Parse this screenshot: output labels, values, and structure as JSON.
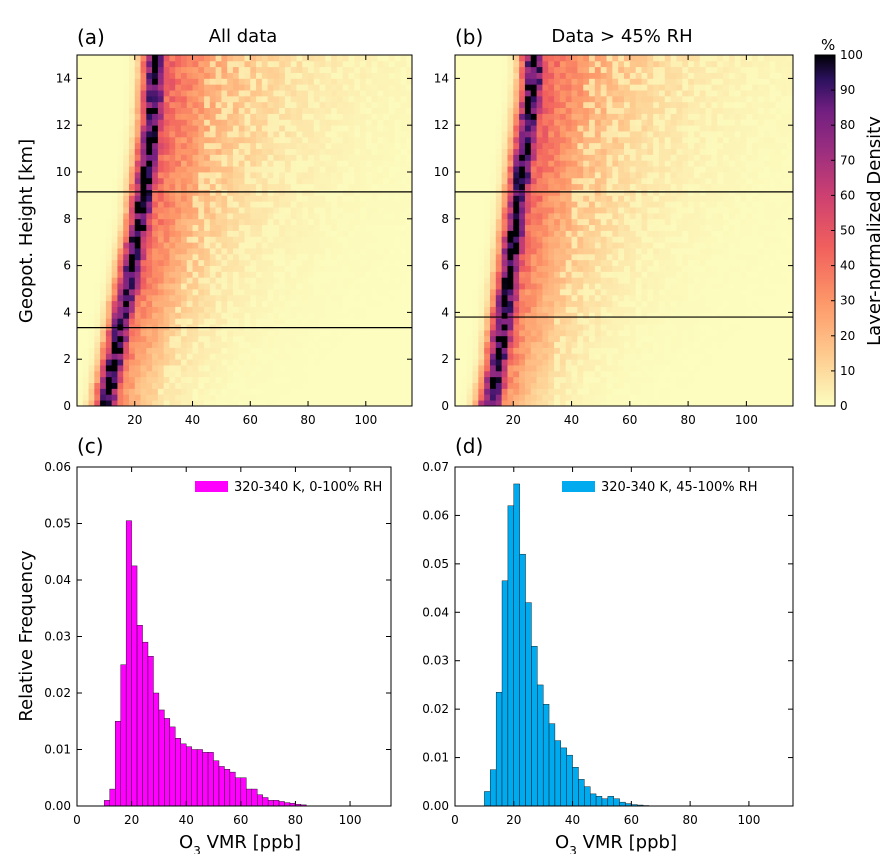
{
  "chart_data": [
    {
      "type": "heatmap",
      "panel": "(a)",
      "title": "All data",
      "xlabel": "",
      "ylabel": "Geopot. Height [km]",
      "xlim": [
        0,
        116
      ],
      "ylim": [
        0,
        15
      ],
      "xticks": [
        20,
        40,
        60,
        80,
        100
      ],
      "yticks": [
        0,
        2,
        4,
        6,
        8,
        10,
        12,
        14
      ],
      "hlines": [
        3.35,
        9.15
      ],
      "ridge": [
        [
          10,
          0
        ],
        [
          13,
          2
        ],
        [
          16,
          4
        ],
        [
          19,
          6
        ],
        [
          22,
          8
        ],
        [
          24,
          10
        ],
        [
          26,
          12
        ],
        [
          27,
          14
        ],
        [
          27,
          15
        ]
      ]
    },
    {
      "type": "heatmap",
      "panel": "(b)",
      "title": "Data > 45% RH",
      "xlabel": "",
      "ylabel": "",
      "xlim": [
        0,
        116
      ],
      "ylim": [
        0,
        15
      ],
      "xticks": [
        20,
        40,
        60,
        80,
        100
      ],
      "yticks": [
        0,
        2,
        4,
        6,
        8,
        10,
        12,
        14
      ],
      "hlines": [
        3.8,
        9.15
      ],
      "ridge": [
        [
          12,
          0
        ],
        [
          15,
          2
        ],
        [
          17,
          4
        ],
        [
          19,
          6
        ],
        [
          21,
          8
        ],
        [
          23,
          10
        ],
        [
          25,
          12
        ],
        [
          27,
          14
        ],
        [
          27,
          15
        ]
      ]
    },
    {
      "type": "bar",
      "panel": "(c)",
      "xlabel": "O3 VMR [ppb]",
      "ylabel": "Relative Frequency",
      "xlim": [
        0,
        115
      ],
      "ylim": [
        0,
        0.06
      ],
      "xticks": [
        0,
        20,
        40,
        60,
        80,
        100
      ],
      "yticks": [
        0.0,
        0.01,
        0.02,
        0.03,
        0.04,
        0.05,
        0.06
      ],
      "bin_width": 2,
      "bin_start": 10,
      "series": [
        {
          "name": "320-340 K, 0-100% RH",
          "color": "#ff00ff",
          "values": [
            0.001,
            0.003,
            0.015,
            0.025,
            0.0505,
            0.0425,
            0.032,
            0.029,
            0.0265,
            0.02,
            0.017,
            0.0155,
            0.014,
            0.012,
            0.011,
            0.0105,
            0.01,
            0.01,
            0.0095,
            0.0095,
            0.008,
            0.007,
            0.0065,
            0.006,
            0.005,
            0.005,
            0.003,
            0.003,
            0.002,
            0.0015,
            0.001,
            0.001,
            0.0008,
            0.0006,
            0.0005,
            0.0003,
            0.0002
          ]
        }
      ]
    },
    {
      "type": "bar",
      "panel": "(d)",
      "xlabel": "O3 VMR [ppb]",
      "ylabel": "",
      "xlim": [
        0,
        115
      ],
      "ylim": [
        0,
        0.07
      ],
      "xticks": [
        0,
        20,
        40,
        60,
        80,
        100
      ],
      "yticks": [
        0.0,
        0.01,
        0.02,
        0.03,
        0.04,
        0.05,
        0.06,
        0.07
      ],
      "bin_width": 2,
      "bin_start": 10,
      "series": [
        {
          "name": "320-340 K, 45-100% RH",
          "color": "#00aaee",
          "values": [
            0.003,
            0.0075,
            0.0235,
            0.0465,
            0.062,
            0.0665,
            0.052,
            0.042,
            0.033,
            0.025,
            0.021,
            0.017,
            0.0135,
            0.012,
            0.0105,
            0.008,
            0.0055,
            0.004,
            0.0025,
            0.002,
            0.0015,
            0.002,
            0.0015,
            0.0008,
            0.0005,
            0.0003,
            0.0002,
            0.0001
          ]
        }
      ]
    }
  ],
  "colorbar": {
    "unit": "%",
    "label": "Layer-normalized Density",
    "ticks": [
      0,
      10,
      20,
      30,
      40,
      50,
      60,
      70,
      80,
      90,
      100
    ]
  }
}
